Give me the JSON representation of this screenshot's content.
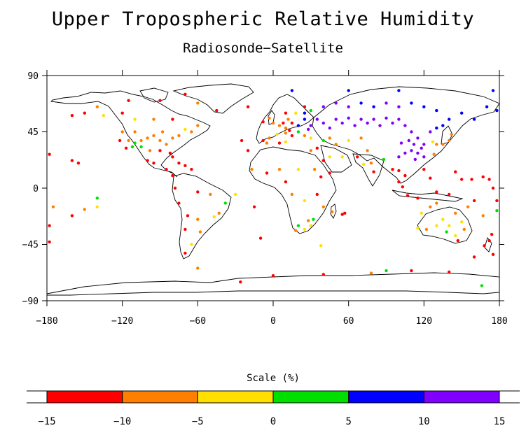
{
  "title": "Upper Tropospheric Relative Humidity",
  "subtitle": "Radiosonde−Satellite",
  "axes": {
    "x_ticks": [
      "−180",
      "−120",
      "−60",
      "0",
      "60",
      "120",
      "180"
    ],
    "y_ticks": [
      "90",
      "45",
      "0",
      "−45",
      "−90"
    ],
    "x_range": [
      -180,
      180
    ],
    "y_range": [
      -90,
      90
    ]
  },
  "scale": {
    "title": "Scale (%)",
    "bins": [
      {
        "from": -15,
        "to": -10,
        "color": "#ff0000"
      },
      {
        "from": -10,
        "to": -5,
        "color": "#ff8000"
      },
      {
        "from": -5,
        "to": 0,
        "color": "#ffe000"
      },
      {
        "from": 0,
        "to": 5,
        "color": "#00e000"
      },
      {
        "from": 5,
        "to": 10,
        "color": "#0000ff"
      },
      {
        "from": 10,
        "to": 15,
        "color": "#8000ff"
      }
    ],
    "tick_labels": [
      "−15",
      "−10",
      "−5",
      "0",
      "5",
      "10",
      "15"
    ]
  },
  "stations": [
    {
      "lon": -100,
      "lat": 40,
      "c": 1
    },
    {
      "lon": -95,
      "lat": 42,
      "c": 1
    },
    {
      "lon": -105,
      "lat": 38,
      "c": 1
    },
    {
      "lon": -90,
      "lat": 38,
      "c": 1
    },
    {
      "lon": -85,
      "lat": 35,
      "c": 1
    },
    {
      "lon": -110,
      "lat": 45,
      "c": 1
    },
    {
      "lon": -115,
      "lat": 38,
      "c": 1
    },
    {
      "lon": -98,
      "lat": 30,
      "c": 1
    },
    {
      "lon": -80,
      "lat": 40,
      "c": 1
    },
    {
      "lon": -75,
      "lat": 42,
      "c": 1
    },
    {
      "lon": -88,
      "lat": 45,
      "c": 1
    },
    {
      "lon": -120,
      "lat": 45,
      "c": 1
    },
    {
      "lon": -112,
      "lat": 33,
      "c": 3
    },
    {
      "lon": -110,
      "lat": 36,
      "c": 3
    },
    {
      "lon": -105,
      "lat": 33,
      "c": 3
    },
    {
      "lon": -117,
      "lat": 32,
      "c": 0
    },
    {
      "lon": -122,
      "lat": 38,
      "c": 0
    },
    {
      "lon": -80,
      "lat": 25,
      "c": 0
    },
    {
      "lon": -82,
      "lat": 28,
      "c": 0
    },
    {
      "lon": -90,
      "lat": 30,
      "c": 0
    },
    {
      "lon": -95,
      "lat": 20,
      "c": 0
    },
    {
      "lon": -100,
      "lat": 22,
      "c": 0
    },
    {
      "lon": -75,
      "lat": 20,
      "c": 0
    },
    {
      "lon": -70,
      "lat": 18,
      "c": 0
    },
    {
      "lon": -65,
      "lat": 15,
      "c": 0
    },
    {
      "lon": -85,
      "lat": 15,
      "c": 0
    },
    {
      "lon": -80,
      "lat": 10,
      "c": 0
    },
    {
      "lon": -150,
      "lat": 60,
      "c": 0
    },
    {
      "lon": -160,
      "lat": 58,
      "c": 0
    },
    {
      "lon": -135,
      "lat": 58,
      "c": 2
    },
    {
      "lon": -140,
      "lat": 65,
      "c": 1
    },
    {
      "lon": -120,
      "lat": 60,
      "c": 0
    },
    {
      "lon": -110,
      "lat": 55,
      "c": 2
    },
    {
      "lon": -95,
      "lat": 55,
      "c": 1
    },
    {
      "lon": -80,
      "lat": 55,
      "c": 0
    },
    {
      "lon": -60,
      "lat": 50,
      "c": 1
    },
    {
      "lon": -65,
      "lat": 45,
      "c": 1
    },
    {
      "lon": -70,
      "lat": 47,
      "c": 2
    },
    {
      "lon": -115,
      "lat": 70,
      "c": 0
    },
    {
      "lon": -90,
      "lat": 70,
      "c": 0
    },
    {
      "lon": -70,
      "lat": 75,
      "c": 0
    },
    {
      "lon": -60,
      "lat": 68,
      "c": 1
    },
    {
      "lon": -45,
      "lat": 62,
      "c": 0
    },
    {
      "lon": -20,
      "lat": 65,
      "c": 0
    },
    {
      "lon": -155,
      "lat": 20,
      "c": 0
    },
    {
      "lon": -160,
      "lat": 22,
      "c": 0
    },
    {
      "lon": -175,
      "lat": -15,
      "c": 1
    },
    {
      "lon": -150,
      "lat": -17,
      "c": 1
    },
    {
      "lon": -140,
      "lat": -15,
      "c": 2
    },
    {
      "lon": -160,
      "lat": -22,
      "c": 0
    },
    {
      "lon": -178,
      "lat": -30,
      "c": 0
    },
    {
      "lon": -178,
      "lat": -43,
      "c": 0
    },
    {
      "lon": -140,
      "lat": -8,
      "c": 3
    },
    {
      "lon": -178,
      "lat": 27,
      "c": 0
    },
    {
      "lon": -70,
      "lat": -33,
      "c": 0
    },
    {
      "lon": -68,
      "lat": -22,
      "c": 0
    },
    {
      "lon": -60,
      "lat": -25,
      "c": 1
    },
    {
      "lon": -58,
      "lat": -35,
      "c": 1
    },
    {
      "lon": -65,
      "lat": -45,
      "c": 2
    },
    {
      "lon": -70,
      "lat": -52,
      "c": 0
    },
    {
      "lon": -47,
      "lat": -23,
      "c": 2
    },
    {
      "lon": -43,
      "lat": -20,
      "c": 1
    },
    {
      "lon": -38,
      "lat": -12,
      "c": 3
    },
    {
      "lon": -50,
      "lat": -5,
      "c": 1
    },
    {
      "lon": -60,
      "lat": -3,
      "c": 0
    },
    {
      "lon": -75,
      "lat": -12,
      "c": 0
    },
    {
      "lon": -78,
      "lat": 0,
      "c": 0
    },
    {
      "lon": -30,
      "lat": -5,
      "c": 2
    },
    {
      "lon": -15,
      "lat": -15,
      "c": 0
    },
    {
      "lon": -10,
      "lat": -40,
      "c": 0
    },
    {
      "lon": -20,
      "lat": 30,
      "c": 0
    },
    {
      "lon": -25,
      "lat": 38,
      "c": 0
    },
    {
      "lon": -17,
      "lat": 15,
      "c": 1
    },
    {
      "lon": 0,
      "lat": 52,
      "c": 1
    },
    {
      "lon": 5,
      "lat": 50,
      "c": 1
    },
    {
      "lon": 10,
      "lat": 48,
      "c": 1
    },
    {
      "lon": 15,
      "lat": 52,
      "c": 0
    },
    {
      "lon": 20,
      "lat": 50,
      "c": 4
    },
    {
      "lon": 25,
      "lat": 55,
      "c": 4
    },
    {
      "lon": 30,
      "lat": 50,
      "c": 5
    },
    {
      "lon": 35,
      "lat": 55,
      "c": 5
    },
    {
      "lon": 40,
      "lat": 52,
      "c": 5
    },
    {
      "lon": 45,
      "lat": 48,
      "c": 5
    },
    {
      "lon": 50,
      "lat": 55,
      "c": 5
    },
    {
      "lon": 55,
      "lat": 52,
      "c": 5
    },
    {
      "lon": 60,
      "lat": 56,
      "c": 5
    },
    {
      "lon": 65,
      "lat": 50,
      "c": 5
    },
    {
      "lon": 70,
      "lat": 55,
      "c": 5
    },
    {
      "lon": 75,
      "lat": 52,
      "c": 5
    },
    {
      "lon": 80,
      "lat": 55,
      "c": 5
    },
    {
      "lon": 85,
      "lat": 50,
      "c": 5
    },
    {
      "lon": 90,
      "lat": 56,
      "c": 5
    },
    {
      "lon": 95,
      "lat": 52,
      "c": 5
    },
    {
      "lon": 100,
      "lat": 55,
      "c": 5
    },
    {
      "lon": 105,
      "lat": 50,
      "c": 5
    },
    {
      "lon": 110,
      "lat": 45,
      "c": 5
    },
    {
      "lon": 115,
      "lat": 40,
      "c": 5
    },
    {
      "lon": 120,
      "lat": 35,
      "c": 5
    },
    {
      "lon": 110,
      "lat": 30,
      "c": 5
    },
    {
      "lon": 105,
      "lat": 28,
      "c": 5
    },
    {
      "lon": 115,
      "lat": 28,
      "c": 5
    },
    {
      "lon": 112,
      "lat": 35,
      "c": 5
    },
    {
      "lon": 118,
      "lat": 32,
      "c": 5
    },
    {
      "lon": 108,
      "lat": 38,
      "c": 5
    },
    {
      "lon": 102,
      "lat": 36,
      "c": 5
    },
    {
      "lon": 100,
      "lat": 25,
      "c": 5
    },
    {
      "lon": 113,
      "lat": 23,
      "c": 5
    },
    {
      "lon": 120,
      "lat": 25,
      "c": 5
    },
    {
      "lon": 125,
      "lat": 45,
      "c": 5
    },
    {
      "lon": 130,
      "lat": 48,
      "c": 4
    },
    {
      "lon": 135,
      "lat": 50,
      "c": 4
    },
    {
      "lon": 140,
      "lat": 55,
      "c": 4
    },
    {
      "lon": 130,
      "lat": 62,
      "c": 4
    },
    {
      "lon": 120,
      "lat": 65,
      "c": 4
    },
    {
      "lon": 110,
      "lat": 68,
      "c": 4
    },
    {
      "lon": 100,
      "lat": 65,
      "c": 5
    },
    {
      "lon": 90,
      "lat": 68,
      "c": 5
    },
    {
      "lon": 80,
      "lat": 65,
      "c": 4
    },
    {
      "lon": 70,
      "lat": 68,
      "c": 4
    },
    {
      "lon": 60,
      "lat": 65,
      "c": 5
    },
    {
      "lon": 50,
      "lat": 68,
      "c": 5
    },
    {
      "lon": 40,
      "lat": 65,
      "c": 5
    },
    {
      "lon": 30,
      "lat": 62,
      "c": 3
    },
    {
      "lon": 25,
      "lat": 65,
      "c": 0
    },
    {
      "lon": 150,
      "lat": 60,
      "c": 4
    },
    {
      "lon": 160,
      "lat": 55,
      "c": 4
    },
    {
      "lon": 170,
      "lat": 65,
      "c": 4
    },
    {
      "lon": 178,
      "lat": 62,
      "c": 4
    },
    {
      "lon": 175,
      "lat": 78,
      "c": 4
    },
    {
      "lon": 100,
      "lat": 78,
      "c": 4
    },
    {
      "lon": 60,
      "lat": 78,
      "c": 4
    },
    {
      "lon": 15,
      "lat": 78,
      "c": 4
    },
    {
      "lon": 130,
      "lat": 35,
      "c": 1
    },
    {
      "lon": 135,
      "lat": 35,
      "c": 1
    },
    {
      "lon": 140,
      "lat": 38,
      "c": 1
    },
    {
      "lon": 142,
      "lat": 43,
      "c": 1
    },
    {
      "lon": 127,
      "lat": 37,
      "c": 2
    },
    {
      "lon": 128,
      "lat": 27,
      "c": 1
    },
    {
      "lon": 75,
      "lat": 30,
      "c": 1
    },
    {
      "lon": 78,
      "lat": 20,
      "c": 1
    },
    {
      "lon": 80,
      "lat": 13,
      "c": 0
    },
    {
      "lon": 88,
      "lat": 23,
      "c": 3
    },
    {
      "lon": 72,
      "lat": 19,
      "c": 2
    },
    {
      "lon": 67,
      "lat": 25,
      "c": 0
    },
    {
      "lon": 55,
      "lat": 25,
      "c": 2
    },
    {
      "lon": 45,
      "lat": 25,
      "c": 2
    },
    {
      "lon": 40,
      "lat": 22,
      "c": 0
    },
    {
      "lon": 35,
      "lat": 32,
      "c": 0
    },
    {
      "lon": 30,
      "lat": 30,
      "c": 1
    },
    {
      "lon": 33,
      "lat": 15,
      "c": 1
    },
    {
      "lon": 45,
      "lat": 12,
      "c": 0
    },
    {
      "lon": 38,
      "lat": 9,
      "c": 0
    },
    {
      "lon": 20,
      "lat": 15,
      "c": 2
    },
    {
      "lon": 5,
      "lat": 15,
      "c": 1
    },
    {
      "lon": -5,
      "lat": 12,
      "c": 0
    },
    {
      "lon": 10,
      "lat": 5,
      "c": 0
    },
    {
      "lon": 15,
      "lat": -5,
      "c": 1
    },
    {
      "lon": 25,
      "lat": -10,
      "c": 2
    },
    {
      "lon": 35,
      "lat": -5,
      "c": 0
    },
    {
      "lon": 40,
      "lat": -15,
      "c": 1
    },
    {
      "lon": 28,
      "lat": -26,
      "c": 1
    },
    {
      "lon": 20,
      "lat": -30,
      "c": 3
    },
    {
      "lon": 25,
      "lat": -33,
      "c": 2
    },
    {
      "lon": 30,
      "lat": -30,
      "c": 2
    },
    {
      "lon": 18,
      "lat": -34,
      "c": 1
    },
    {
      "lon": 32,
      "lat": -25,
      "c": 3
    },
    {
      "lon": 47,
      "lat": -19,
      "c": 1
    },
    {
      "lon": 55,
      "lat": -21,
      "c": 0
    },
    {
      "lon": 57,
      "lat": -20,
      "c": 0
    },
    {
      "lon": 38,
      "lat": -46,
      "c": 2
    },
    {
      "lon": 95,
      "lat": 15,
      "c": 0
    },
    {
      "lon": 100,
      "lat": 14,
      "c": 0
    },
    {
      "lon": 105,
      "lat": 10,
      "c": 0
    },
    {
      "lon": 100,
      "lat": 5,
      "c": 0
    },
    {
      "lon": 103,
      "lat": 1,
      "c": 0
    },
    {
      "lon": 107,
      "lat": -6,
      "c": 0
    },
    {
      "lon": 115,
      "lat": -8,
      "c": 0
    },
    {
      "lon": 120,
      "lat": 15,
      "c": 0
    },
    {
      "lon": 125,
      "lat": 8,
      "c": 0
    },
    {
      "lon": 130,
      "lat": -3,
      "c": 0
    },
    {
      "lon": 140,
      "lat": -5,
      "c": 0
    },
    {
      "lon": 145,
      "lat": 13,
      "c": 0
    },
    {
      "lon": 150,
      "lat": 7,
      "c": 0
    },
    {
      "lon": 158,
      "lat": 7,
      "c": 0
    },
    {
      "lon": 167,
      "lat": 9,
      "c": 0
    },
    {
      "lon": 172,
      "lat": 7,
      "c": 0
    },
    {
      "lon": 175,
      "lat": 0,
      "c": 0
    },
    {
      "lon": 178,
      "lat": -10,
      "c": 0
    },
    {
      "lon": 178,
      "lat": -18,
      "c": 3
    },
    {
      "lon": 167,
      "lat": -22,
      "c": 1
    },
    {
      "lon": 160,
      "lat": -10,
      "c": 0
    },
    {
      "lon": 115,
      "lat": -32,
      "c": 2
    },
    {
      "lon": 118,
      "lat": -20,
      "c": 2
    },
    {
      "lon": 125,
      "lat": -15,
      "c": 1
    },
    {
      "lon": 130,
      "lat": -12,
      "c": 1
    },
    {
      "lon": 135,
      "lat": -25,
      "c": 2
    },
    {
      "lon": 140,
      "lat": -30,
      "c": 2
    },
    {
      "lon": 145,
      "lat": -20,
      "c": 1
    },
    {
      "lon": 150,
      "lat": -27,
      "c": 2
    },
    {
      "lon": 145,
      "lat": -38,
      "c": 2
    },
    {
      "lon": 138,
      "lat": -35,
      "c": 3
    },
    {
      "lon": 130,
      "lat": -30,
      "c": 2
    },
    {
      "lon": 122,
      "lat": -33,
      "c": 1
    },
    {
      "lon": 147,
      "lat": -42,
      "c": 0
    },
    {
      "lon": 152,
      "lat": -33,
      "c": 1
    },
    {
      "lon": 155,
      "lat": -15,
      "c": 1
    },
    {
      "lon": 172,
      "lat": -42,
      "c": 0
    },
    {
      "lon": 174,
      "lat": -37,
      "c": 0
    },
    {
      "lon": 168,
      "lat": -46,
      "c": 0
    },
    {
      "lon": 160,
      "lat": -55,
      "c": 0
    },
    {
      "lon": 175,
      "lat": -53,
      "c": 0
    },
    {
      "lon": 110,
      "lat": -66,
      "c": 0
    },
    {
      "lon": 90,
      "lat": -66,
      "c": 3
    },
    {
      "lon": 78,
      "lat": -68,
      "c": 1
    },
    {
      "lon": 40,
      "lat": -69,
      "c": 0
    },
    {
      "lon": 0,
      "lat": -70,
      "c": 0
    },
    {
      "lon": -26,
      "lat": -75,
      "c": 0
    },
    {
      "lon": -60,
      "lat": -64,
      "c": 1
    },
    {
      "lon": 166,
      "lat": -78,
      "c": 3
    },
    {
      "lon": 140,
      "lat": -67,
      "c": 0
    },
    {
      "lon": 70,
      "lat": 40,
      "c": 1
    },
    {
      "lon": 60,
      "lat": 38,
      "c": 2
    },
    {
      "lon": 50,
      "lat": 35,
      "c": 1
    },
    {
      "lon": 45,
      "lat": 40,
      "c": 1
    },
    {
      "lon": 40,
      "lat": 38,
      "c": 3
    },
    {
      "lon": 30,
      "lat": 40,
      "c": 2
    },
    {
      "lon": 25,
      "lat": 42,
      "c": 1
    },
    {
      "lon": 15,
      "lat": 42,
      "c": 0
    },
    {
      "lon": 10,
      "lat": 44,
      "c": 1
    },
    {
      "lon": 3,
      "lat": 43,
      "c": 2
    },
    {
      "lon": -3,
      "lat": 40,
      "c": 1
    },
    {
      "lon": -8,
      "lat": 38,
      "c": 0
    },
    {
      "lon": -5,
      "lat": 36,
      "c": 1
    },
    {
      "lon": 10,
      "lat": 37,
      "c": 2
    },
    {
      "lon": 5,
      "lat": 36,
      "c": 0
    },
    {
      "lon": -8,
      "lat": 53,
      "c": 0
    },
    {
      "lon": -3,
      "lat": 56,
      "c": 1
    },
    {
      "lon": 10,
      "lat": 60,
      "c": 0
    },
    {
      "lon": 18,
      "lat": 60,
      "c": 2
    },
    {
      "lon": 25,
      "lat": 60,
      "c": 4
    },
    {
      "lon": 12,
      "lat": 55,
      "c": 1
    },
    {
      "lon": 8,
      "lat": 52,
      "c": 0
    },
    {
      "lon": 13,
      "lat": 46,
      "c": 0
    },
    {
      "lon": 20,
      "lat": 45,
      "c": 3
    },
    {
      "lon": 28,
      "lat": 47,
      "c": 5
    }
  ]
}
